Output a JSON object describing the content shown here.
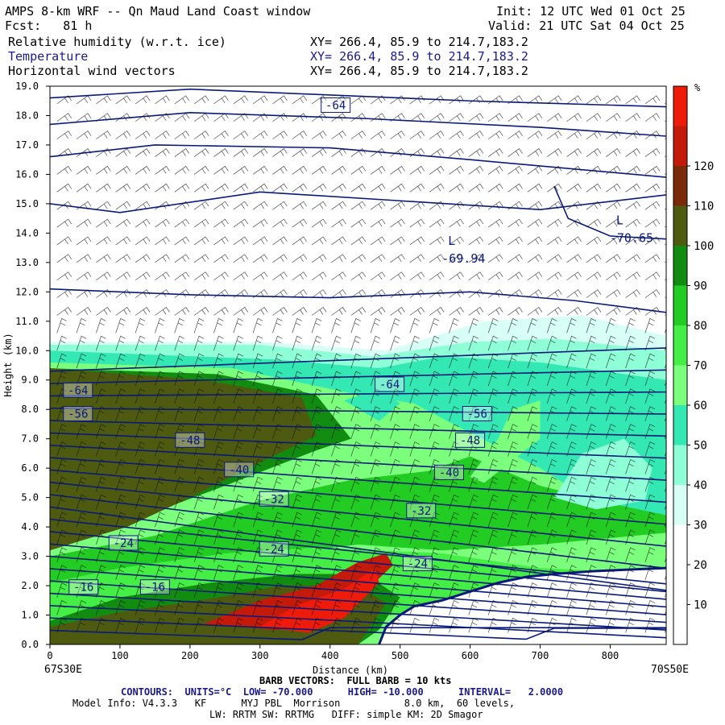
{
  "header": {
    "title": "AMPS 8-km WRF -- Qn Maud Land Coast window",
    "init": "Init: 12 UTC Wed 01 Oct 25",
    "fcst": "Fcst:   81 h",
    "valid": "Valid: 21 UTC Sat 04 Oct 25",
    "fields": [
      {
        "label": "Relative humidity (w.r.t. ice)",
        "xy": "XY= 266.4, 85.9 to 214.7,183.2",
        "color": "#000000"
      },
      {
        "label": "Temperature",
        "xy": "XY= 266.4, 85.9 to 214.7,183.2",
        "color": "#1a1a8c"
      },
      {
        "label": "Horizontal wind vectors",
        "xy": "XY= 266.4, 85.9 to 214.7,183.2",
        "color": "#000000"
      }
    ]
  },
  "chart_data": {
    "type": "heatmap",
    "title": "Relative humidity (w.r.t. ice) / Temperature / Horizontal wind vectors cross-section",
    "xlabel": "Distance (km)",
    "ylabel": "Height (km)",
    "xlim": [
      0,
      880
    ],
    "ylim": [
      0,
      19
    ],
    "x_ticks": [
      0,
      100,
      200,
      300,
      400,
      500,
      600,
      700,
      800
    ],
    "y_ticks": [
      "0.0",
      "1.0",
      "2.0",
      "3.0",
      "4.0",
      "5.0",
      "6.0",
      "7.0",
      "8.0",
      "9.0",
      "10.0",
      "11.0",
      "12.0",
      "13.0",
      "14.0",
      "15.0",
      "16.0",
      "17.0",
      "18.0",
      "19.0"
    ],
    "left_endpoint": "67S30E",
    "right_endpoint": "70S50E",
    "colorbar": {
      "unit": "%",
      "ticks": [
        10,
        20,
        30,
        40,
        50,
        60,
        70,
        80,
        90,
        100,
        110,
        120
      ],
      "colors": [
        "#ffffff",
        "#ffffff",
        "#ffffff",
        "#d7fff5",
        "#8fffd8",
        "#34e8b4",
        "#7cff7c",
        "#44ee44",
        "#22cc22",
        "#118c11",
        "#4d5a0f",
        "#7a2a0a",
        "#c41a0a",
        "#ee1a0a"
      ]
    },
    "contour_labels": [
      {
        "text": "-64",
        "x": 408,
        "y": 18.3
      },
      {
        "text": "-64",
        "x": 40,
        "y": 8.6
      },
      {
        "text": "-56",
        "x": 40,
        "y": 7.8
      },
      {
        "text": "-48",
        "x": 200,
        "y": 6.9
      },
      {
        "text": "-40",
        "x": 270,
        "y": 5.9
      },
      {
        "text": "-32",
        "x": 320,
        "y": 4.9
      },
      {
        "text": "-24",
        "x": 105,
        "y": 3.4
      },
      {
        "text": "-24",
        "x": 320,
        "y": 3.2
      },
      {
        "text": "-16",
        "x": 48,
        "y": 1.9
      },
      {
        "text": "-16",
        "x": 150,
        "y": 1.9
      },
      {
        "text": "-64",
        "x": 485,
        "y": 8.8
      },
      {
        "text": "-56",
        "x": 610,
        "y": 7.8
      },
      {
        "text": "-48",
        "x": 600,
        "y": 6.9
      },
      {
        "text": "-40",
        "x": 570,
        "y": 5.8
      },
      {
        "text": "-32",
        "x": 530,
        "y": 4.5
      },
      {
        "text": "-24",
        "x": 525,
        "y": 2.7
      }
    ],
    "extrema": [
      {
        "letter": "L",
        "value": "-69.94",
        "x": 580,
        "y": 13.6
      },
      {
        "letter": "L",
        "value": "-70.65",
        "x": 820,
        "y": 14.3
      }
    ]
  },
  "footer": {
    "barb": "BARB VECTORS:  FULL BARB = 10 kts",
    "contours": "CONTOURS:  UNITS=°C  LOW= -70.000      HIGH= -10.000      INTERVAL=   2.0000",
    "model1": "Model Info: V4.3.3   KF      MYJ PBL  Morrison           8.0 km,  60 levels,",
    "model2": "LW: RRTM SW: RRTMG   DIFF: simple KM: 2D Smagor"
  }
}
